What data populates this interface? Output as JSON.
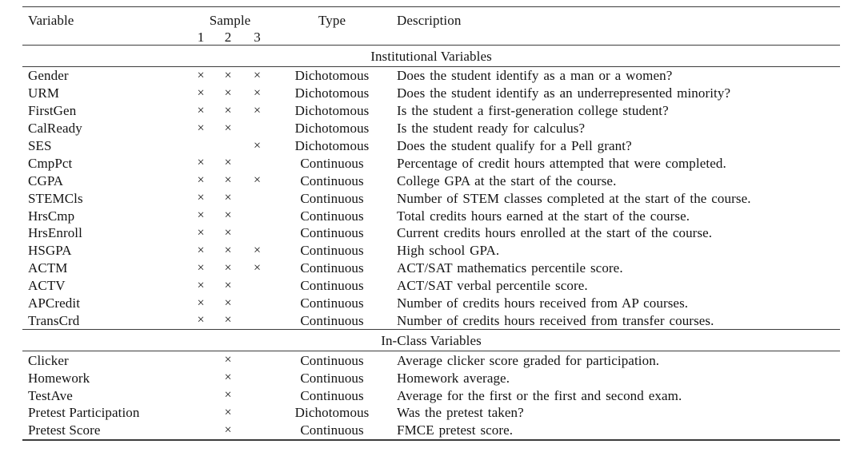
{
  "table": {
    "header": {
      "variable": "Variable",
      "sample": "Sample",
      "sample_cols": [
        "1",
        "2",
        "3"
      ],
      "type": "Type",
      "description": "Description"
    },
    "mark_glyph": "×",
    "sections": [
      {
        "title": "Institutional Variables",
        "rows": [
          {
            "variable": "Gender",
            "samples": [
              "×",
              "×",
              "×"
            ],
            "type": "Dichotomous",
            "description": "Does the student identify as a man or a women?"
          },
          {
            "variable": "URM",
            "samples": [
              "×",
              "×",
              "×"
            ],
            "type": "Dichotomous",
            "description": "Does the student identify as an underrepresented minority?"
          },
          {
            "variable": "FirstGen",
            "samples": [
              "×",
              "×",
              "×"
            ],
            "type": "Dichotomous",
            "description": "Is the student a first-generation college student?"
          },
          {
            "variable": "CalReady",
            "samples": [
              "×",
              "×",
              ""
            ],
            "type": "Dichotomous",
            "description": "Is the student ready for calculus?"
          },
          {
            "variable": "SES",
            "samples": [
              "",
              "",
              "×"
            ],
            "type": "Dichotomous",
            "description": "Does the student qualify for a Pell grant?"
          },
          {
            "variable": "CmpPct",
            "samples": [
              "×",
              "×",
              ""
            ],
            "type": "Continuous",
            "description": "Percentage of credit hours attempted that were completed."
          },
          {
            "variable": "CGPA",
            "samples": [
              "×",
              "×",
              "×"
            ],
            "type": "Continuous",
            "description": "College GPA at the start of the course."
          },
          {
            "variable": "STEMCls",
            "samples": [
              "×",
              "×",
              ""
            ],
            "type": "Continuous",
            "description": "Number of STEM classes completed at the start of the course."
          },
          {
            "variable": "HrsCmp",
            "samples": [
              "×",
              "×",
              ""
            ],
            "type": "Continuous",
            "description": "Total credits hours earned at the start of the course."
          },
          {
            "variable": "HrsEnroll",
            "samples": [
              "×",
              "×",
              ""
            ],
            "type": "Continuous",
            "description": "Current credits hours enrolled at the start of the course."
          },
          {
            "variable": "HSGPA",
            "samples": [
              "×",
              "×",
              "×"
            ],
            "type": "Continuous",
            "description": "High school GPA."
          },
          {
            "variable": "ACTM",
            "samples": [
              "×",
              "×",
              "×"
            ],
            "type": "Continuous",
            "description": "ACT/SAT mathematics percentile score."
          },
          {
            "variable": "ACTV",
            "samples": [
              "×",
              "×",
              ""
            ],
            "type": "Continuous",
            "description": "ACT/SAT verbal percentile score."
          },
          {
            "variable": "APCredit",
            "samples": [
              "×",
              "×",
              ""
            ],
            "type": "Continuous",
            "description": "Number of credits hours received from AP courses."
          },
          {
            "variable": "TransCrd",
            "samples": [
              "×",
              "×",
              ""
            ],
            "type": "Continuous",
            "description": "Number of credits hours received from transfer courses."
          }
        ]
      },
      {
        "title": "In-Class Variables",
        "rows": [
          {
            "variable": "Clicker",
            "samples": [
              "",
              "×",
              ""
            ],
            "type": "Continuous",
            "description": "Average clicker score graded for participation."
          },
          {
            "variable": "Homework",
            "samples": [
              "",
              "×",
              ""
            ],
            "type": "Continuous",
            "description": "Homework average."
          },
          {
            "variable": "TestAve",
            "samples": [
              "",
              "×",
              ""
            ],
            "type": "Continuous",
            "description": "Average for the first or the first and second exam."
          },
          {
            "variable": "Pretest Participation",
            "samples": [
              "",
              "×",
              ""
            ],
            "type": "Dichotomous",
            "description": "Was the pretest taken?"
          },
          {
            "variable": "Pretest Score",
            "samples": [
              "",
              "×",
              ""
            ],
            "type": "Continuous",
            "description": "FMCE pretest score."
          }
        ]
      }
    ]
  }
}
